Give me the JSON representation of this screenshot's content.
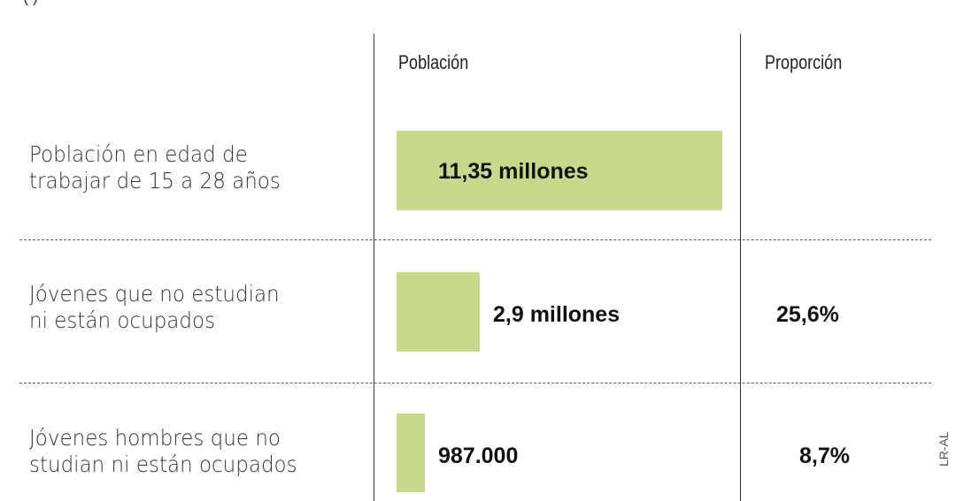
{
  "header": {
    "title_partial": "(                                                  )"
  },
  "columns": {
    "poblacion": "Población",
    "proporcion": "Proporción"
  },
  "credit": "LR-AL",
  "colors": {
    "bar": "#c6d98b",
    "divider": "#555555"
  },
  "chart_data": {
    "type": "bar",
    "orientation": "horizontal",
    "categories": [
      "Población en edad de trabajar de 15 a 28 años",
      "Jóvenes que no estudian ni están ocupados",
      "Jóvenes hombres que no studian ni están ocupados"
    ],
    "category_lines": [
      [
        "Población en edad de",
        "trabajar de 15 a 28 años"
      ],
      [
        "Jóvenes que no estudian",
        "ni están ocupados"
      ],
      [
        "Jóvenes hombres que no",
        "studian ni están ocupados"
      ]
    ],
    "values": [
      11350000,
      2900000,
      987000
    ],
    "value_labels": [
      "11,35 millones",
      "2,9 millones",
      "987.000"
    ],
    "proportions": [
      "",
      "25,6%",
      "8,7%"
    ],
    "xlim": [
      0,
      11350000
    ],
    "grid": false
  }
}
